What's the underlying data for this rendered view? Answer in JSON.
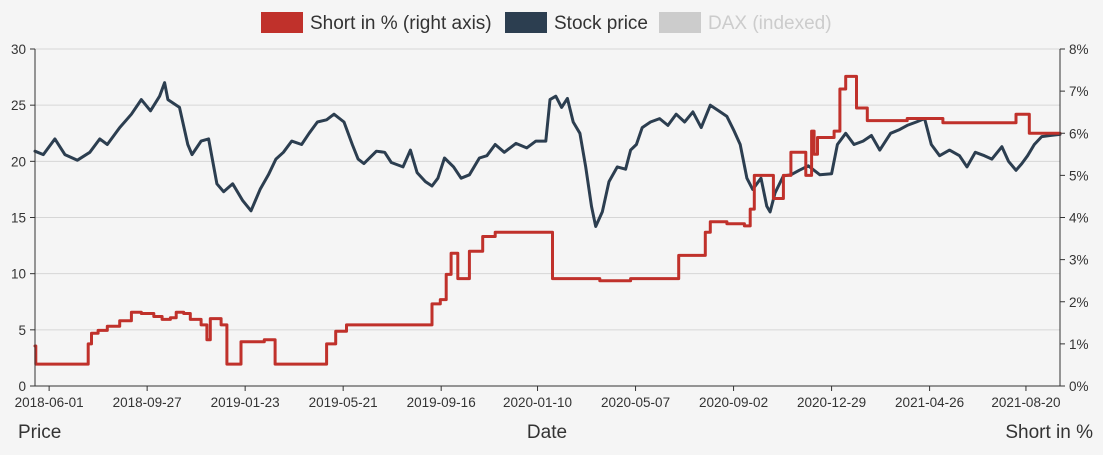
{
  "chart_data": {
    "type": "line",
    "legend": [
      {
        "name": "Short in % (right axis)",
        "color": "#c0312b",
        "active": true
      },
      {
        "name": "Stock price",
        "color": "#2c3e50",
        "active": true
      },
      {
        "name": "DAX (indexed)",
        "color": "#cccccc",
        "active": false
      }
    ],
    "xlabel": "Date",
    "ylabel_left": "Price",
    "ylabel_right": "Short in %",
    "x_range": [
      "2018-05-15",
      "2021-09-30"
    ],
    "y_left_range": [
      0,
      30
    ],
    "y_right_range": [
      0,
      8
    ],
    "x_ticks": [
      "2018-06-01",
      "2018-09-27",
      "2019-01-23",
      "2019-05-21",
      "2019-09-16",
      "2020-01-10",
      "2020-05-07",
      "2020-09-02",
      "2020-12-29",
      "2021-04-26",
      "2021-08-20"
    ],
    "y_left_ticks": [
      0,
      5,
      10,
      15,
      20,
      25,
      30
    ],
    "y_right_ticks": [
      "0%",
      "1%",
      "2%",
      "3%",
      "4%",
      "5%",
      "6%",
      "7%",
      "8%"
    ],
    "grid": true,
    "legend_position": "top-center",
    "series": [
      {
        "name": "Stock price",
        "axis": "left",
        "color": "#2c3e50",
        "points": [
          [
            "2018-05-15",
            20.9
          ],
          [
            "2018-05-25",
            20.6
          ],
          [
            "2018-06-08",
            22.0
          ],
          [
            "2018-06-20",
            20.6
          ],
          [
            "2018-07-05",
            20.1
          ],
          [
            "2018-07-20",
            20.8
          ],
          [
            "2018-08-01",
            22.0
          ],
          [
            "2018-08-10",
            21.5
          ],
          [
            "2018-08-25",
            23.0
          ],
          [
            "2018-09-08",
            24.2
          ],
          [
            "2018-09-20",
            25.5
          ],
          [
            "2018-10-01",
            24.5
          ],
          [
            "2018-10-12",
            25.8
          ],
          [
            "2018-10-18",
            27.0
          ],
          [
            "2018-10-22",
            25.5
          ],
          [
            "2018-11-05",
            24.8
          ],
          [
            "2018-11-15",
            21.5
          ],
          [
            "2018-11-20",
            20.6
          ],
          [
            "2018-12-01",
            21.8
          ],
          [
            "2018-12-10",
            22.0
          ],
          [
            "2018-12-20",
            18.0
          ],
          [
            "2018-12-28",
            17.3
          ],
          [
            "2019-01-08",
            18.0
          ],
          [
            "2019-01-20",
            16.5
          ],
          [
            "2019-01-30",
            15.6
          ],
          [
            "2019-02-10",
            17.5
          ],
          [
            "2019-02-20",
            18.8
          ],
          [
            "2019-03-01",
            20.2
          ],
          [
            "2019-03-10",
            20.8
          ],
          [
            "2019-03-20",
            21.8
          ],
          [
            "2019-04-01",
            21.5
          ],
          [
            "2019-04-10",
            22.5
          ],
          [
            "2019-04-20",
            23.5
          ],
          [
            "2019-05-01",
            23.7
          ],
          [
            "2019-05-10",
            24.2
          ],
          [
            "2019-05-22",
            23.5
          ],
          [
            "2019-06-01",
            21.5
          ],
          [
            "2019-06-08",
            20.2
          ],
          [
            "2019-06-15",
            19.8
          ],
          [
            "2019-06-30",
            20.9
          ],
          [
            "2019-07-10",
            20.8
          ],
          [
            "2019-07-18",
            19.9
          ],
          [
            "2019-08-01",
            19.5
          ],
          [
            "2019-08-10",
            21.0
          ],
          [
            "2019-08-18",
            19.0
          ],
          [
            "2019-08-28",
            18.2
          ],
          [
            "2019-09-05",
            17.8
          ],
          [
            "2019-09-12",
            18.5
          ],
          [
            "2019-09-20",
            20.3
          ],
          [
            "2019-10-01",
            19.5
          ],
          [
            "2019-10-10",
            18.5
          ],
          [
            "2019-10-20",
            18.8
          ],
          [
            "2019-11-01",
            20.3
          ],
          [
            "2019-11-10",
            20.5
          ],
          [
            "2019-11-20",
            21.5
          ],
          [
            "2019-12-01",
            20.8
          ],
          [
            "2019-12-15",
            21.6
          ],
          [
            "2019-12-28",
            21.2
          ],
          [
            "2020-01-08",
            21.8
          ],
          [
            "2020-01-20",
            21.8
          ],
          [
            "2020-01-25",
            25.5
          ],
          [
            "2020-02-01",
            25.8
          ],
          [
            "2020-02-08",
            24.8
          ],
          [
            "2020-02-15",
            25.6
          ],
          [
            "2020-02-22",
            23.5
          ],
          [
            "2020-03-01",
            22.5
          ],
          [
            "2020-03-08",
            19.5
          ],
          [
            "2020-03-15",
            16.0
          ],
          [
            "2020-03-20",
            14.2
          ],
          [
            "2020-03-28",
            15.5
          ],
          [
            "2020-04-05",
            18.2
          ],
          [
            "2020-04-15",
            19.5
          ],
          [
            "2020-04-25",
            19.3
          ],
          [
            "2020-05-01",
            21.0
          ],
          [
            "2020-05-08",
            21.5
          ],
          [
            "2020-05-15",
            23.0
          ],
          [
            "2020-05-25",
            23.5
          ],
          [
            "2020-06-05",
            23.8
          ],
          [
            "2020-06-15",
            23.2
          ],
          [
            "2020-06-25",
            24.2
          ],
          [
            "2020-07-05",
            23.5
          ],
          [
            "2020-07-15",
            24.4
          ],
          [
            "2020-07-25",
            23.0
          ],
          [
            "2020-08-05",
            25.0
          ],
          [
            "2020-08-15",
            24.5
          ],
          [
            "2020-08-25",
            24.0
          ],
          [
            "2020-09-02",
            22.8
          ],
          [
            "2020-09-10",
            21.5
          ],
          [
            "2020-09-18",
            18.5
          ],
          [
            "2020-09-25",
            17.5
          ],
          [
            "2020-10-05",
            18.5
          ],
          [
            "2020-10-12",
            16.0
          ],
          [
            "2020-10-16",
            15.5
          ],
          [
            "2020-10-22",
            17.2
          ],
          [
            "2020-11-01",
            18.7
          ],
          [
            "2020-11-10",
            18.8
          ],
          [
            "2020-11-20",
            19.2
          ],
          [
            "2020-12-01",
            19.6
          ],
          [
            "2020-12-15",
            18.8
          ],
          [
            "2020-12-29",
            18.9
          ],
          [
            "2021-01-05",
            21.5
          ],
          [
            "2021-01-15",
            22.5
          ],
          [
            "2021-01-25",
            21.5
          ],
          [
            "2021-02-05",
            21.8
          ],
          [
            "2021-02-15",
            22.3
          ],
          [
            "2021-02-25",
            21.0
          ],
          [
            "2021-03-10",
            22.5
          ],
          [
            "2021-03-20",
            22.8
          ],
          [
            "2021-03-30",
            23.2
          ],
          [
            "2021-04-10",
            23.5
          ],
          [
            "2021-04-20",
            23.8
          ],
          [
            "2021-04-28",
            21.5
          ],
          [
            "2021-05-08",
            20.5
          ],
          [
            "2021-05-20",
            21.0
          ],
          [
            "2021-06-01",
            20.5
          ],
          [
            "2021-06-10",
            19.5
          ],
          [
            "2021-06-20",
            20.8
          ],
          [
            "2021-07-01",
            20.5
          ],
          [
            "2021-07-10",
            20.2
          ],
          [
            "2021-07-22",
            21.3
          ],
          [
            "2021-07-30",
            20.0
          ],
          [
            "2021-08-08",
            19.2
          ],
          [
            "2021-08-15",
            19.8
          ],
          [
            "2021-08-22",
            20.5
          ],
          [
            "2021-08-30",
            21.5
          ],
          [
            "2021-09-08",
            22.2
          ],
          [
            "2021-09-18",
            22.3
          ],
          [
            "2021-09-30",
            22.4
          ]
        ]
      },
      {
        "name": "Short in % (right axis)",
        "axis": "right",
        "color": "#c0312b",
        "step": true,
        "points": [
          [
            "2018-05-15",
            0.95
          ],
          [
            "2018-05-16",
            0.52
          ],
          [
            "2018-07-18",
            1.0
          ],
          [
            "2018-07-22",
            1.25
          ],
          [
            "2018-07-30",
            1.32
          ],
          [
            "2018-08-10",
            1.42
          ],
          [
            "2018-08-25",
            1.55
          ],
          [
            "2018-09-08",
            1.75
          ],
          [
            "2018-09-20",
            1.72
          ],
          [
            "2018-10-05",
            1.65
          ],
          [
            "2018-10-15",
            1.58
          ],
          [
            "2018-10-25",
            1.62
          ],
          [
            "2018-11-01",
            1.75
          ],
          [
            "2018-11-10",
            1.72
          ],
          [
            "2018-11-18",
            1.58
          ],
          [
            "2018-12-01",
            1.45
          ],
          [
            "2018-12-08",
            1.1
          ],
          [
            "2018-12-12",
            1.6
          ],
          [
            "2018-12-25",
            1.45
          ],
          [
            "2019-01-01",
            0.52
          ],
          [
            "2019-01-18",
            1.05
          ],
          [
            "2019-02-15",
            1.1
          ],
          [
            "2019-02-28",
            0.52
          ],
          [
            "2019-05-01",
            1.0
          ],
          [
            "2019-05-12",
            1.3
          ],
          [
            "2019-05-25",
            1.45
          ],
          [
            "2019-09-05",
            1.95
          ],
          [
            "2019-09-15",
            2.05
          ],
          [
            "2019-09-22",
            2.65
          ],
          [
            "2019-09-28",
            3.15
          ],
          [
            "2019-10-06",
            2.55
          ],
          [
            "2019-10-20",
            3.2
          ],
          [
            "2019-11-05",
            3.55
          ],
          [
            "2019-11-20",
            3.65
          ],
          [
            "2020-01-20",
            3.65
          ],
          [
            "2020-01-28",
            2.55
          ],
          [
            "2020-03-25",
            2.5
          ],
          [
            "2020-04-25",
            2.5
          ],
          [
            "2020-05-01",
            2.55
          ],
          [
            "2020-06-25",
            2.55
          ],
          [
            "2020-06-28",
            3.1
          ],
          [
            "2020-07-25",
            3.1
          ],
          [
            "2020-07-30",
            3.65
          ],
          [
            "2020-08-05",
            3.9
          ],
          [
            "2020-08-25",
            3.85
          ],
          [
            "2020-09-15",
            3.8
          ],
          [
            "2020-09-22",
            4.2
          ],
          [
            "2020-09-27",
            5.0
          ],
          [
            "2020-10-20",
            4.45
          ],
          [
            "2020-11-01",
            5.0
          ],
          [
            "2020-11-10",
            5.55
          ],
          [
            "2020-11-28",
            5.0
          ],
          [
            "2020-12-05",
            6.05
          ],
          [
            "2020-12-08",
            5.5
          ],
          [
            "2020-12-12",
            5.9
          ],
          [
            "2021-01-01",
            6.05
          ],
          [
            "2021-01-08",
            7.05
          ],
          [
            "2021-01-15",
            7.35
          ],
          [
            "2021-01-28",
            6.6
          ],
          [
            "2021-02-10",
            6.3
          ],
          [
            "2021-03-25",
            6.3
          ],
          [
            "2021-03-30",
            6.35
          ],
          [
            "2021-05-12",
            6.25
          ],
          [
            "2021-08-05",
            6.25
          ],
          [
            "2021-08-08",
            6.45
          ],
          [
            "2021-08-20",
            6.45
          ],
          [
            "2021-08-24",
            6.0
          ],
          [
            "2021-09-30",
            6.0
          ]
        ]
      }
    ]
  }
}
